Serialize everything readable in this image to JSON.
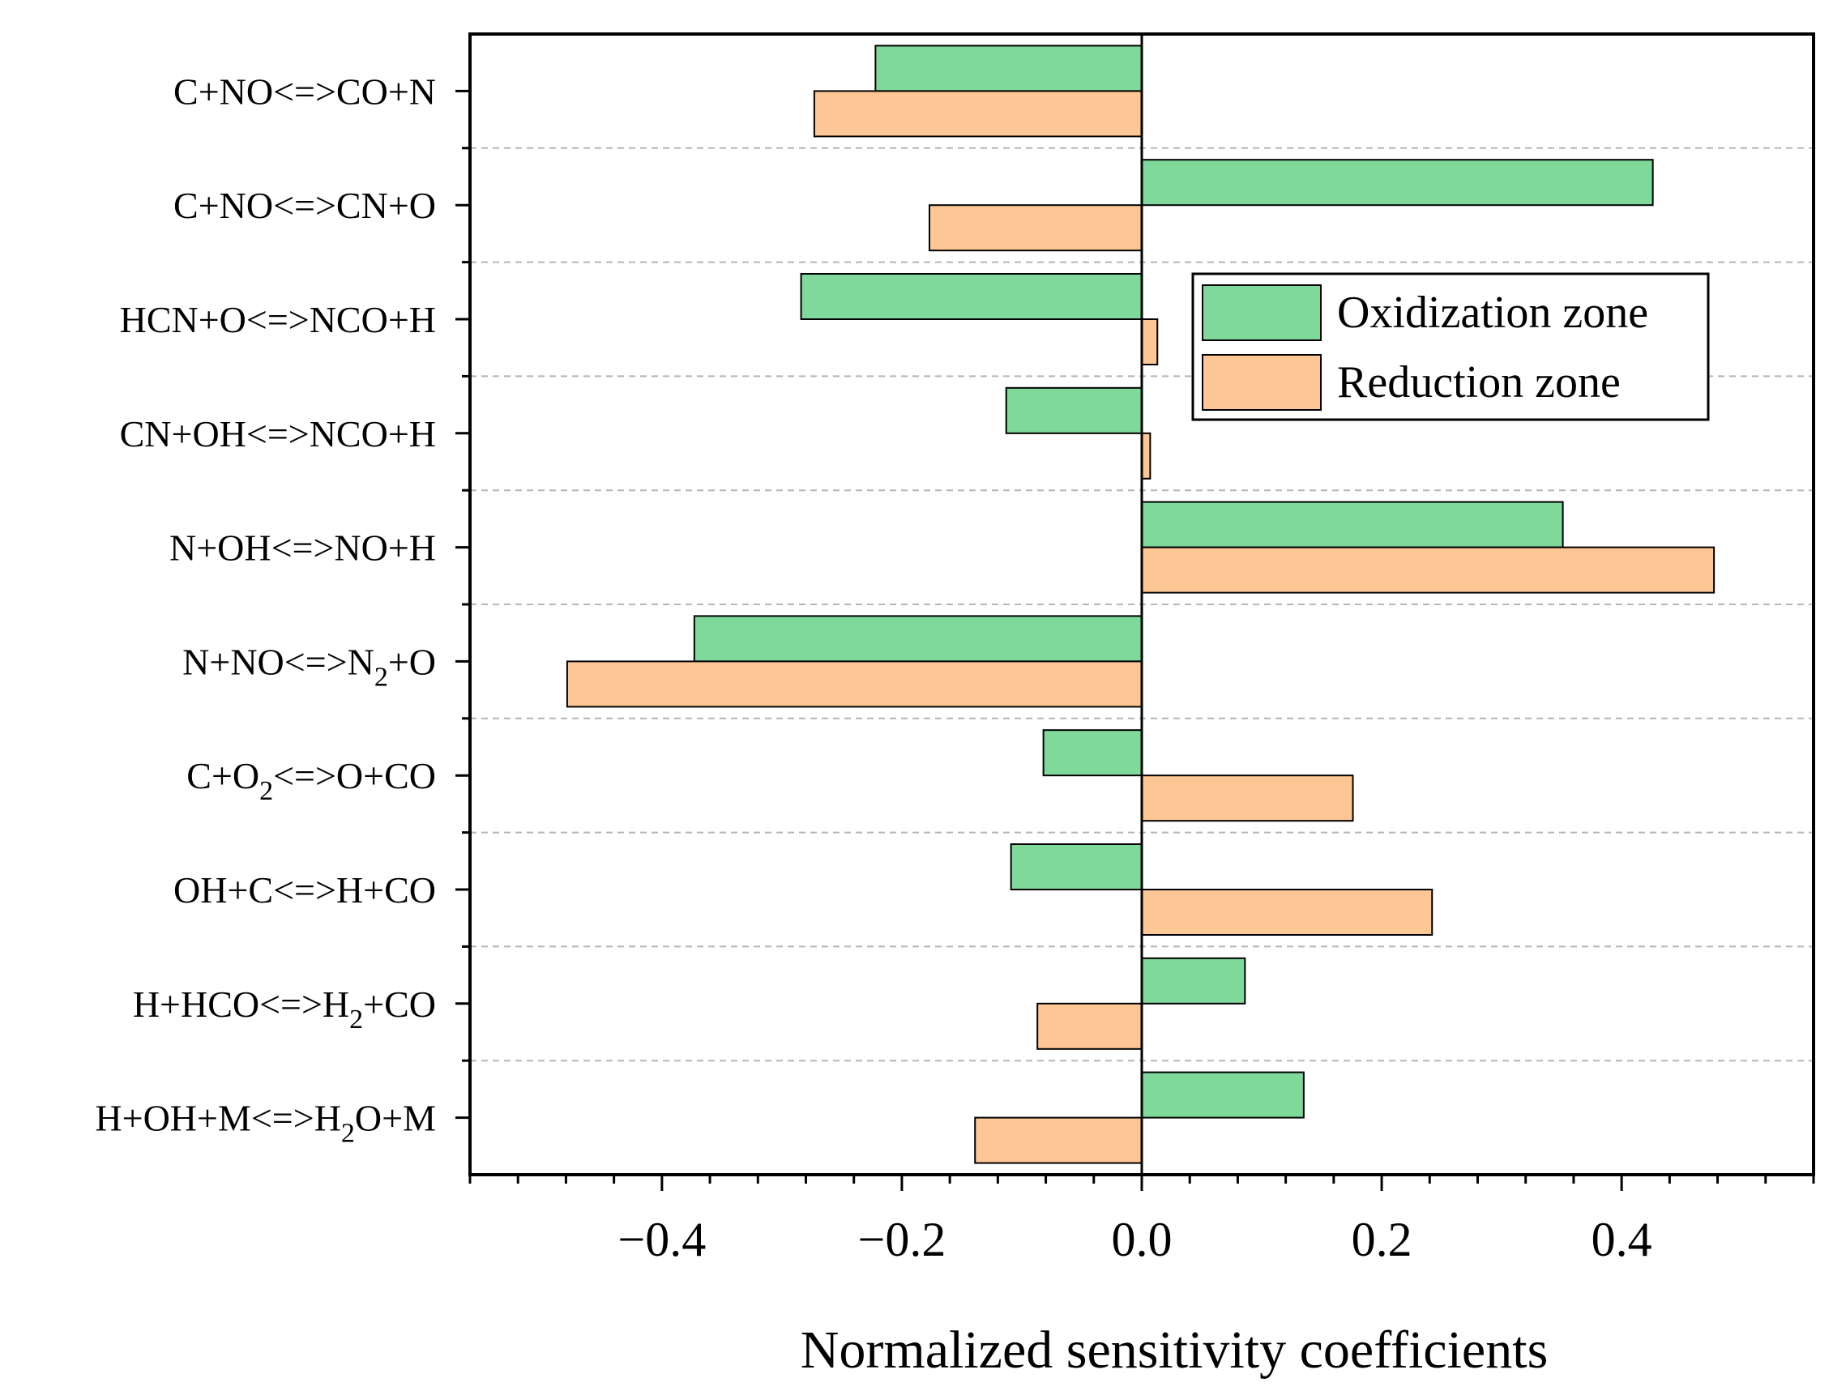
{
  "chart_data": {
    "type": "bar",
    "orientation": "horizontal",
    "categories": [
      {
        "text": "C+NO<=>CO+N",
        "parts": [
          {
            "t": "C+NO<=>CO+N"
          }
        ]
      },
      {
        "text": "C+NO<=>CN+O",
        "parts": [
          {
            "t": "C+NO<=>CN+O"
          }
        ]
      },
      {
        "text": "HCN+O<=>NCO+H",
        "parts": [
          {
            "t": "HCN+O<=>NCO+H"
          }
        ]
      },
      {
        "text": "CN+OH<=>NCO+H",
        "parts": [
          {
            "t": "CN+OH<=>NCO+H"
          }
        ]
      },
      {
        "text": "N+OH<=>NO+H",
        "parts": [
          {
            "t": "N+OH<=>NO+H"
          }
        ]
      },
      {
        "text": "N+NO<=>N2+O",
        "parts": [
          {
            "t": "N+NO<=>N"
          },
          {
            "t": "2",
            "sub": true
          },
          {
            "t": "+O"
          }
        ]
      },
      {
        "text": "C+O2<=>O+CO",
        "parts": [
          {
            "t": "C+O"
          },
          {
            "t": "2",
            "sub": true
          },
          {
            "t": "<=>O+CO"
          }
        ]
      },
      {
        "text": "OH+C<=>H+CO",
        "parts": [
          {
            "t": "OH+C<=>H+CO"
          }
        ]
      },
      {
        "text": "H+HCO<=>H2+CO",
        "parts": [
          {
            "t": "H+HCO<=>H"
          },
          {
            "t": "2",
            "sub": true
          },
          {
            "t": "+CO"
          }
        ]
      },
      {
        "text": "H+OH+M<=>H2O+M",
        "parts": [
          {
            "t": "H+OH+M<=>H"
          },
          {
            "t": "2",
            "sub": true
          },
          {
            "t": "O+M"
          }
        ]
      }
    ],
    "series": [
      {
        "name": "Oxidization zone",
        "color": "#7fd99a",
        "values": [
          -0.222,
          0.426,
          -0.284,
          -0.113,
          0.351,
          -0.373,
          -0.082,
          -0.109,
          0.086,
          0.135
        ]
      },
      {
        "name": "Reduction zone",
        "color": "#fdc795",
        "values": [
          -0.273,
          -0.177,
          0.013,
          0.007,
          0.477,
          -0.479,
          0.176,
          0.242,
          -0.087,
          -0.139
        ]
      }
    ],
    "xlabel": "Normalized sensitivity coefficients",
    "xlim": [
      -0.56,
      0.56
    ],
    "xticks": [
      -0.4,
      -0.2,
      0.0,
      0.2,
      0.4
    ],
    "xtick_labels": [
      "−0.4",
      "−0.2",
      "0.0",
      "0.2",
      "0.4"
    ],
    "x_minor_step": 0.04,
    "grid": "dashed horizontal separators between categories",
    "legend_position": "top-right"
  }
}
